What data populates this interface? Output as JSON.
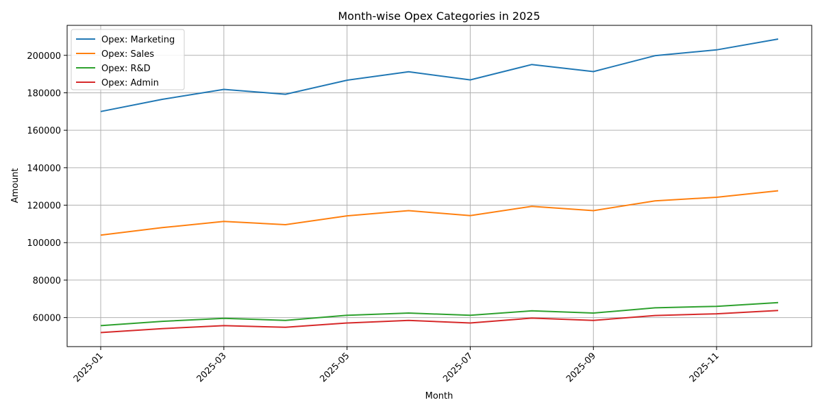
{
  "chart_data": {
    "type": "line",
    "title": "Month-wise Opex Categories in 2025",
    "xlabel": "Month",
    "ylabel": "Amount",
    "x": [
      "2025-01",
      "2025-02",
      "2025-03",
      "2025-04",
      "2025-05",
      "2025-06",
      "2025-07",
      "2025-08",
      "2025-09",
      "2025-10",
      "2025-11",
      "2025-12"
    ],
    "xticks": [
      "2025-01",
      "2025-03",
      "2025-05",
      "2025-07",
      "2025-09",
      "2025-11"
    ],
    "yticks": [
      60000,
      80000,
      100000,
      120000,
      140000,
      160000,
      180000,
      200000
    ],
    "ylim": [
      44500,
      216000
    ],
    "grid": true,
    "legend_position": "upper-left",
    "series": [
      {
        "name": "Opex: Marketing",
        "color": "#1f77b4",
        "values": [
          170000,
          176500,
          181800,
          179200,
          186700,
          191200,
          186900,
          195100,
          191300,
          199800,
          202900,
          208700
        ]
      },
      {
        "name": "Opex: Sales",
        "color": "#ff7f0e",
        "values": [
          104000,
          108000,
          111300,
          109600,
          114300,
          117100,
          114400,
          119400,
          117100,
          122300,
          124200,
          127700
        ]
      },
      {
        "name": "Opex: R&D",
        "color": "#2ca02c",
        "values": [
          55700,
          58000,
          59600,
          58500,
          61200,
          62400,
          61200,
          63600,
          62400,
          65200,
          66000,
          68000
        ]
      },
      {
        "name": "Opex: Admin",
        "color": "#d62728",
        "values": [
          52000,
          54100,
          55700,
          54800,
          57100,
          58500,
          57100,
          59700,
          58500,
          61100,
          62000,
          63800
        ]
      }
    ]
  }
}
